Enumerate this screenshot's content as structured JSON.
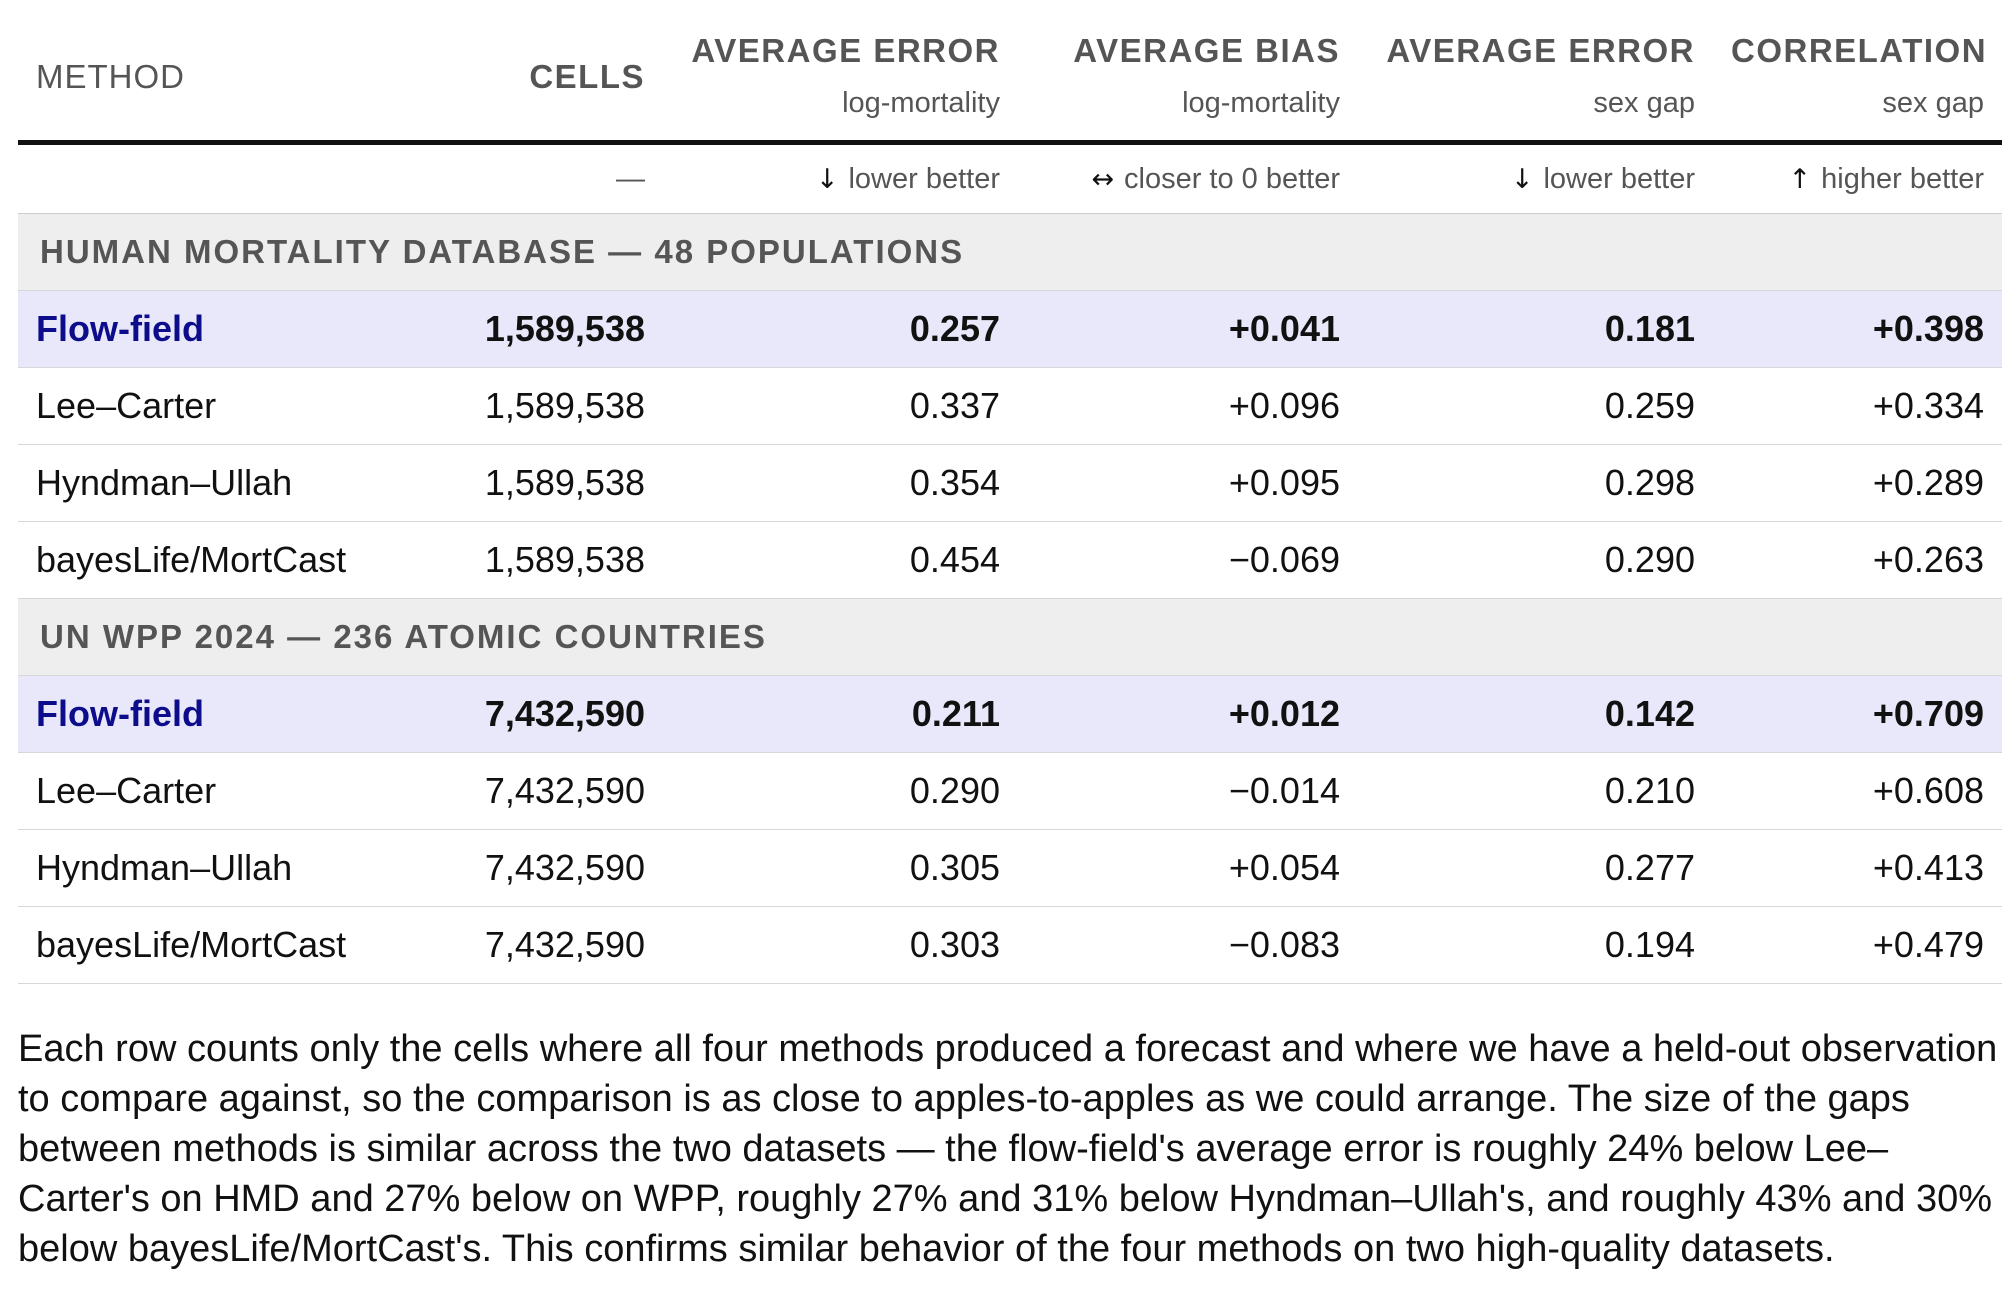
{
  "header": {
    "method": "METHOD",
    "cells": "CELLS",
    "columns": [
      {
        "title": "AVERAGE ERROR",
        "sub": "log-mortality",
        "direction": "lower better",
        "arrow": "↓"
      },
      {
        "title": "AVERAGE BIAS",
        "sub": "log-mortality",
        "direction": "closer to 0 better",
        "arrow": "↔"
      },
      {
        "title": "AVERAGE ERROR",
        "sub": "sex gap",
        "direction": "lower better",
        "arrow": "↓"
      },
      {
        "title": "CORRELATION",
        "sub": "sex gap",
        "direction": "higher better",
        "arrow": "↑"
      }
    ],
    "cells_direction": "—"
  },
  "sections": [
    {
      "title": "HUMAN MORTALITY DATABASE — 48 POPULATIONS",
      "rows": [
        {
          "method": "Flow-field",
          "cells": "1,589,538",
          "err": "0.257",
          "bias": "+0.041",
          "gap_err": "0.181",
          "corr": "+0.398"
        },
        {
          "method": "Lee–Carter",
          "cells": "1,589,538",
          "err": "0.337",
          "bias": "+0.096",
          "gap_err": "0.259",
          "corr": "+0.334"
        },
        {
          "method": "Hyndman–Ullah",
          "cells": "1,589,538",
          "err": "0.354",
          "bias": "+0.095",
          "gap_err": "0.298",
          "corr": "+0.289"
        },
        {
          "method": "bayesLife/MortCast",
          "cells": "1,589,538",
          "err": "0.454",
          "bias": "−0.069",
          "gap_err": "0.290",
          "corr": "+0.263"
        }
      ]
    },
    {
      "title": "UN WPP 2024 — 236 ATOMIC COUNTRIES",
      "rows": [
        {
          "method": "Flow-field",
          "cells": "7,432,590",
          "err": "0.211",
          "bias": "+0.012",
          "gap_err": "0.142",
          "corr": "+0.709"
        },
        {
          "method": "Lee–Carter",
          "cells": "7,432,590",
          "err": "0.290",
          "bias": "−0.014",
          "gap_err": "0.210",
          "corr": "+0.608"
        },
        {
          "method": "Hyndman–Ullah",
          "cells": "7,432,590",
          "err": "0.305",
          "bias": "+0.054",
          "gap_err": "0.277",
          "corr": "+0.413"
        },
        {
          "method": "bayesLife/MortCast",
          "cells": "7,432,590",
          "err": "0.303",
          "bias": "−0.083",
          "gap_err": "0.194",
          "corr": "+0.479"
        }
      ]
    }
  ],
  "note": "Each row counts only the cells where all four methods produced a forecast and where we have a held-out observation to compare against, so the comparison is as close to apples-to-apples as we could arrange. The size of the gaps between methods is similar across the two datasets — the flow-field's average error is roughly 24% below Lee–Carter's on HMD and 27% below on WPP, roughly 27% and 31% below Hyndman–Ullah's, and roughly 43% and 30% below bayesLife/MortCast's. This confirms similar behavior of the four methods on two high-quality datasets.",
  "colors": {
    "highlight_row": "#e8e8fa",
    "highlight_text": "#0d0d8c",
    "section_bg": "#eeeeee"
  }
}
